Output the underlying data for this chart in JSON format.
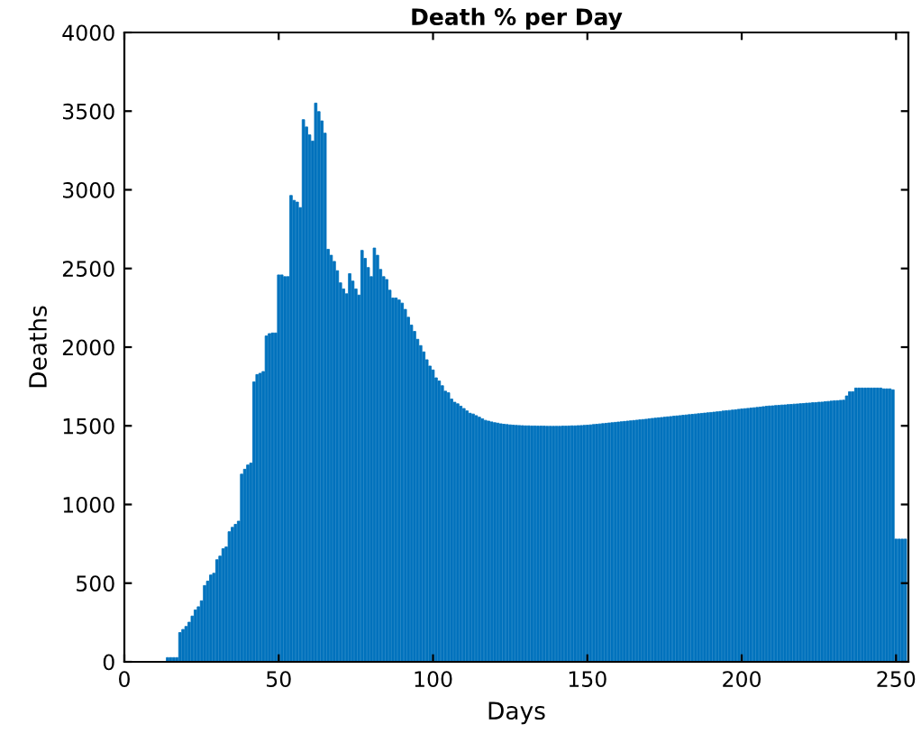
{
  "chart_data": {
    "type": "bar",
    "title": "Death % per Day",
    "xlabel": "Days",
    "ylabel": "Deaths",
    "color": "#0072bd",
    "grid": false,
    "legend": false,
    "xlim": [
      0,
      254
    ],
    "xticks": [
      0,
      50,
      100,
      150,
      200,
      250
    ],
    "ylim": [
      0,
      4000
    ],
    "yticks": [
      0,
      500,
      1000,
      1500,
      2000,
      2500,
      3000,
      3500,
      4000
    ],
    "x": [
      14,
      15,
      16,
      17,
      18,
      19,
      20,
      21,
      22,
      23,
      24,
      25,
      26,
      27,
      28,
      29,
      30,
      31,
      32,
      33,
      34,
      35,
      36,
      37,
      38,
      39,
      40,
      41,
      42,
      43,
      44,
      45,
      46,
      47,
      48,
      49,
      50,
      51,
      52,
      53,
      54,
      55,
      56,
      57,
      58,
      59,
      60,
      61,
      62,
      63,
      64,
      65,
      66,
      67,
      68,
      69,
      70,
      71,
      72,
      73,
      74,
      75,
      76,
      77,
      78,
      79,
      80,
      81,
      82,
      83,
      84,
      85,
      86,
      87,
      88,
      89,
      90,
      91,
      92,
      93,
      94,
      95,
      96,
      97,
      98,
      99,
      100,
      101,
      102,
      103,
      104,
      105,
      106,
      107,
      108,
      109,
      110,
      111,
      112,
      113,
      114,
      115,
      116,
      117,
      118,
      119,
      120,
      121,
      122,
      123,
      124,
      125,
      126,
      127,
      128,
      129,
      130,
      131,
      132,
      133,
      134,
      135,
      136,
      137,
      138,
      139,
      140,
      141,
      142,
      143,
      144,
      145,
      146,
      147,
      148,
      149,
      150,
      151,
      152,
      153,
      154,
      155,
      156,
      157,
      158,
      159,
      160,
      161,
      162,
      163,
      164,
      165,
      166,
      167,
      168,
      169,
      170,
      171,
      172,
      173,
      174,
      175,
      176,
      177,
      178,
      179,
      180,
      181,
      182,
      183,
      184,
      185,
      186,
      187,
      188,
      189,
      190,
      191,
      192,
      193,
      194,
      195,
      196,
      197,
      198,
      199,
      200,
      201,
      202,
      203,
      204,
      205,
      206,
      207,
      208,
      209,
      210,
      211,
      212,
      213,
      214,
      215,
      216,
      217,
      218,
      219,
      220,
      221,
      222,
      223,
      224,
      225,
      226,
      227,
      228,
      229,
      230,
      231,
      232,
      233,
      234,
      235,
      236,
      237,
      238,
      239,
      240,
      241,
      242,
      243,
      244,
      245,
      246,
      247,
      248,
      249,
      250,
      251,
      252,
      253
    ],
    "values": [
      27,
      27,
      27,
      27,
      186,
      206,
      225,
      252,
      291,
      330,
      350,
      388,
      485,
      513,
      552,
      563,
      649,
      672,
      719,
      730,
      827,
      855,
      874,
      894,
      1193,
      1224,
      1251,
      1263,
      1779,
      1826,
      1834,
      1845,
      2071,
      2086,
      2090,
      2090,
      2459,
      2459,
      2448,
      2448,
      2964,
      2933,
      2922,
      2887,
      3446,
      3399,
      3349,
      3310,
      3551,
      3497,
      3438,
      3360,
      2622,
      2584,
      2545,
      2486,
      2409,
      2370,
      2339,
      2467,
      2420,
      2370,
      2331,
      2615,
      2564,
      2506,
      2448,
      2630,
      2584,
      2494,
      2448,
      2430,
      2362,
      2312,
      2312,
      2300,
      2280,
      2240,
      2190,
      2140,
      2100,
      2050,
      2010,
      1970,
      1920,
      1880,
      1855,
      1805,
      1785,
      1755,
      1720,
      1710,
      1670,
      1650,
      1640,
      1625,
      1610,
      1595,
      1580,
      1575,
      1565,
      1555,
      1545,
      1535,
      1530,
      1525,
      1520,
      1517,
      1513,
      1510,
      1508,
      1506,
      1504,
      1503,
      1502,
      1501,
      1500,
      1500,
      1499,
      1499,
      1498,
      1498,
      1498,
      1497,
      1497,
      1497,
      1497,
      1497,
      1498,
      1498,
      1499,
      1500,
      1500,
      1501,
      1502,
      1503,
      1504,
      1506,
      1508,
      1510,
      1512,
      1514,
      1516,
      1518,
      1520,
      1522,
      1524,
      1526,
      1528,
      1530,
      1532,
      1534,
      1536,
      1538,
      1540,
      1542,
      1545,
      1547,
      1549,
      1551,
      1553,
      1555,
      1557,
      1559,
      1561,
      1563,
      1565,
      1567,
      1569,
      1571,
      1573,
      1575,
      1577,
      1579,
      1581,
      1583,
      1585,
      1587,
      1589,
      1591,
      1594,
      1596,
      1598,
      1600,
      1602,
      1605,
      1607,
      1609,
      1611,
      1613,
      1615,
      1617,
      1619,
      1622,
      1624,
      1626,
      1627,
      1629,
      1630,
      1632,
      1633,
      1635,
      1636,
      1638,
      1639,
      1641,
      1642,
      1644,
      1645,
      1647,
      1648,
      1650,
      1651,
      1653,
      1655,
      1657,
      1659,
      1660,
      1662,
      1663,
      1690,
      1717,
      1717,
      1740,
      1740,
      1740,
      1740,
      1740,
      1740,
      1740,
      1740,
      1740,
      1735,
      1735,
      1735,
      1729,
      780,
      780,
      780,
      780
    ]
  }
}
